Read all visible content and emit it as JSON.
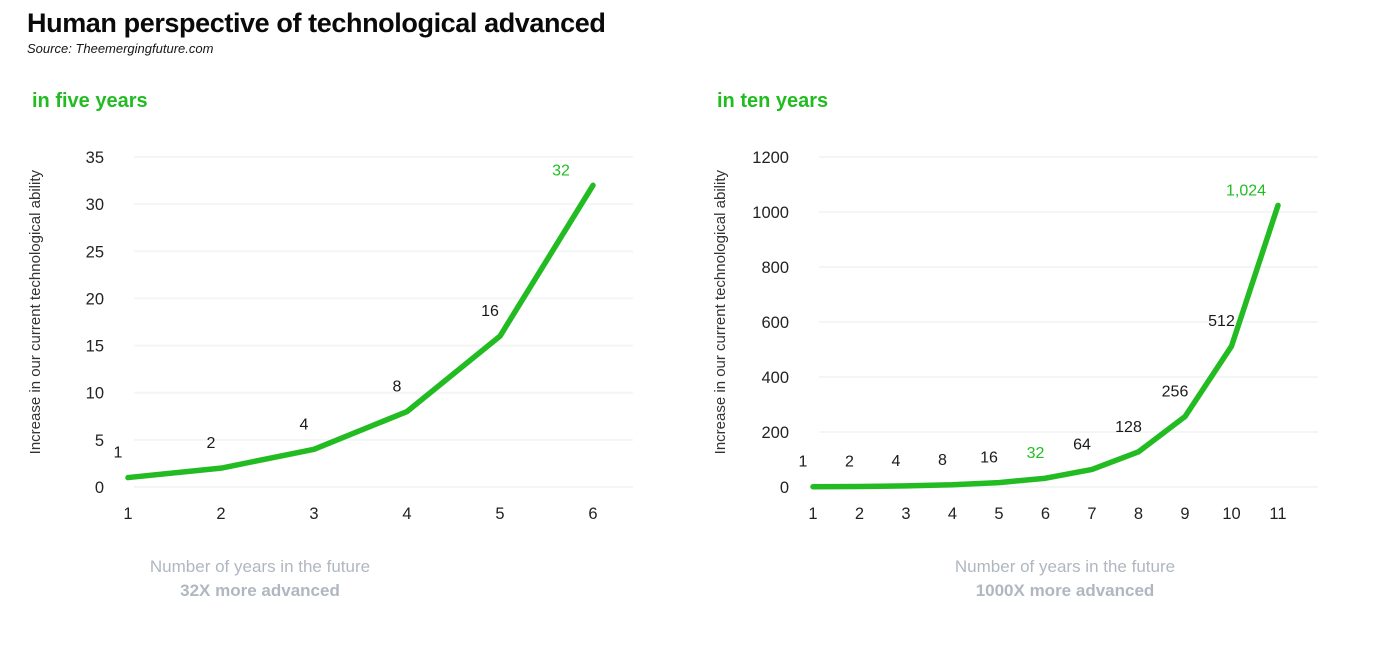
{
  "header": {
    "title": "Human perspective of technological advanced",
    "source": "Source: Theemergingfuture.com"
  },
  "colors": {
    "accent_green": "#22bc22",
    "muted_gray": "#b0b7c0",
    "tick_text": "#232323",
    "point_label_text": "#1a1a1a",
    "gridline": "#f4f5f5",
    "background": "#ffffff"
  },
  "chart_data": [
    {
      "type": "line",
      "title": "in five years",
      "ylabel": "Increase in our current technological ability",
      "xlabel": "Number of years in the future",
      "caption": "32X more advanced",
      "x": [
        1,
        2,
        3,
        4,
        5,
        6
      ],
      "values": [
        1,
        2,
        4,
        8,
        16,
        32
      ],
      "point_labels": [
        "1",
        "2",
        "4",
        "8",
        "16",
        "32"
      ],
      "highlight_indices": [
        5
      ],
      "x_ticks": [
        1,
        2,
        3,
        4,
        5,
        6
      ],
      "y_ticks": [
        0,
        5,
        10,
        15,
        20,
        25,
        30,
        35
      ],
      "ylim": [
        0,
        35
      ],
      "grid": "off",
      "legend": "none",
      "line_color": "#22bc22"
    },
    {
      "type": "line",
      "title": "in ten years",
      "ylabel": "Increase in our current technological ability",
      "xlabel": "Number of years in the future",
      "caption": "1000X more advanced",
      "x": [
        1,
        2,
        3,
        4,
        5,
        6,
        7,
        8,
        9,
        10,
        11
      ],
      "values": [
        1,
        2,
        4,
        8,
        16,
        32,
        64,
        128,
        256,
        512,
        1024
      ],
      "point_labels": [
        "1",
        "2",
        "4",
        "8",
        "16",
        "32",
        "64",
        "128",
        "256",
        "512",
        "1,024"
      ],
      "highlight_indices": [
        5,
        10
      ],
      "x_ticks": [
        1,
        2,
        3,
        4,
        5,
        6,
        7,
        8,
        9,
        10,
        11
      ],
      "y_ticks": [
        0,
        200,
        400,
        600,
        800,
        1000,
        1200
      ],
      "ylim": [
        0,
        1200
      ],
      "grid": "off",
      "legend": "none",
      "line_color": "#22bc22"
    }
  ]
}
